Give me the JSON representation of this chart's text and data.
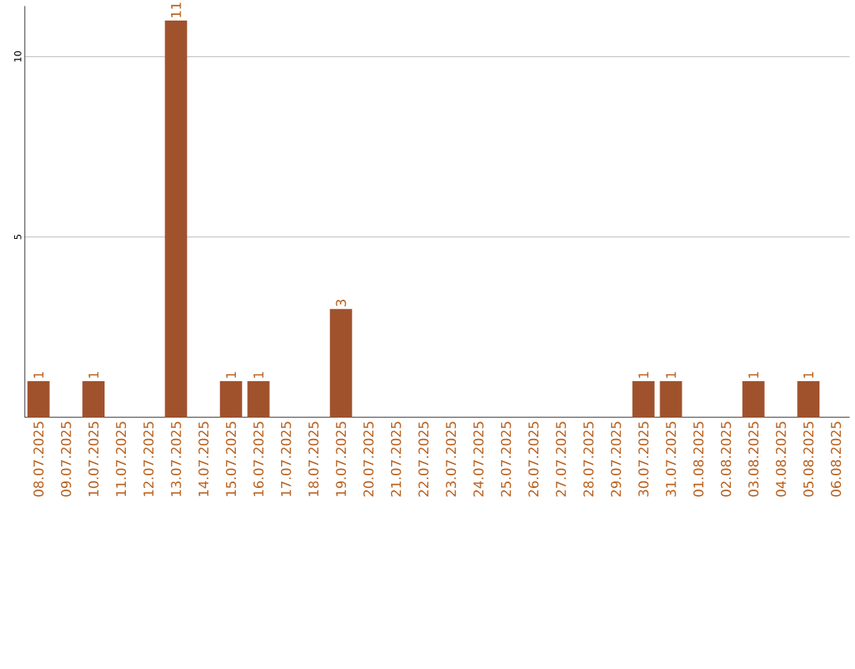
{
  "chart_data": {
    "type": "bar",
    "categories": [
      "08.07.2025",
      "09.07.2025",
      "10.07.2025",
      "11.07.2025",
      "12.07.2025",
      "13.07.2025",
      "14.07.2025",
      "15.07.2025",
      "16.07.2025",
      "17.07.2025",
      "18.07.2025",
      "19.07.2025",
      "20.07.2025",
      "21.07.2025",
      "22.07.2025",
      "23.07.2025",
      "24.07.2025",
      "25.07.2025",
      "26.07.2025",
      "27.07.2025",
      "28.07.2025",
      "29.07.2025",
      "30.07.2025",
      "31.07.2025",
      "01.08.2025",
      "02.08.2025",
      "03.08.2025",
      "04.08.2025",
      "05.08.2025",
      "06.08.2025"
    ],
    "values": [
      1,
      0,
      1,
      0,
      0,
      11,
      0,
      1,
      1,
      0,
      0,
      3,
      0,
      0,
      0,
      0,
      0,
      0,
      0,
      0,
      0,
      0,
      1,
      1,
      0,
      0,
      1,
      0,
      1,
      0
    ],
    "value_labels": [
      "1",
      null,
      "1",
      null,
      null,
      "11",
      null,
      "1",
      "1",
      null,
      null,
      "3",
      null,
      null,
      null,
      null,
      null,
      null,
      null,
      null,
      null,
      null,
      "1",
      "1",
      null,
      null,
      "1",
      null,
      "1",
      null
    ],
    "color": "#a0522d",
    "ylim": [
      0,
      11.4
    ],
    "yticks": [
      5,
      10
    ],
    "grid": "y"
  }
}
